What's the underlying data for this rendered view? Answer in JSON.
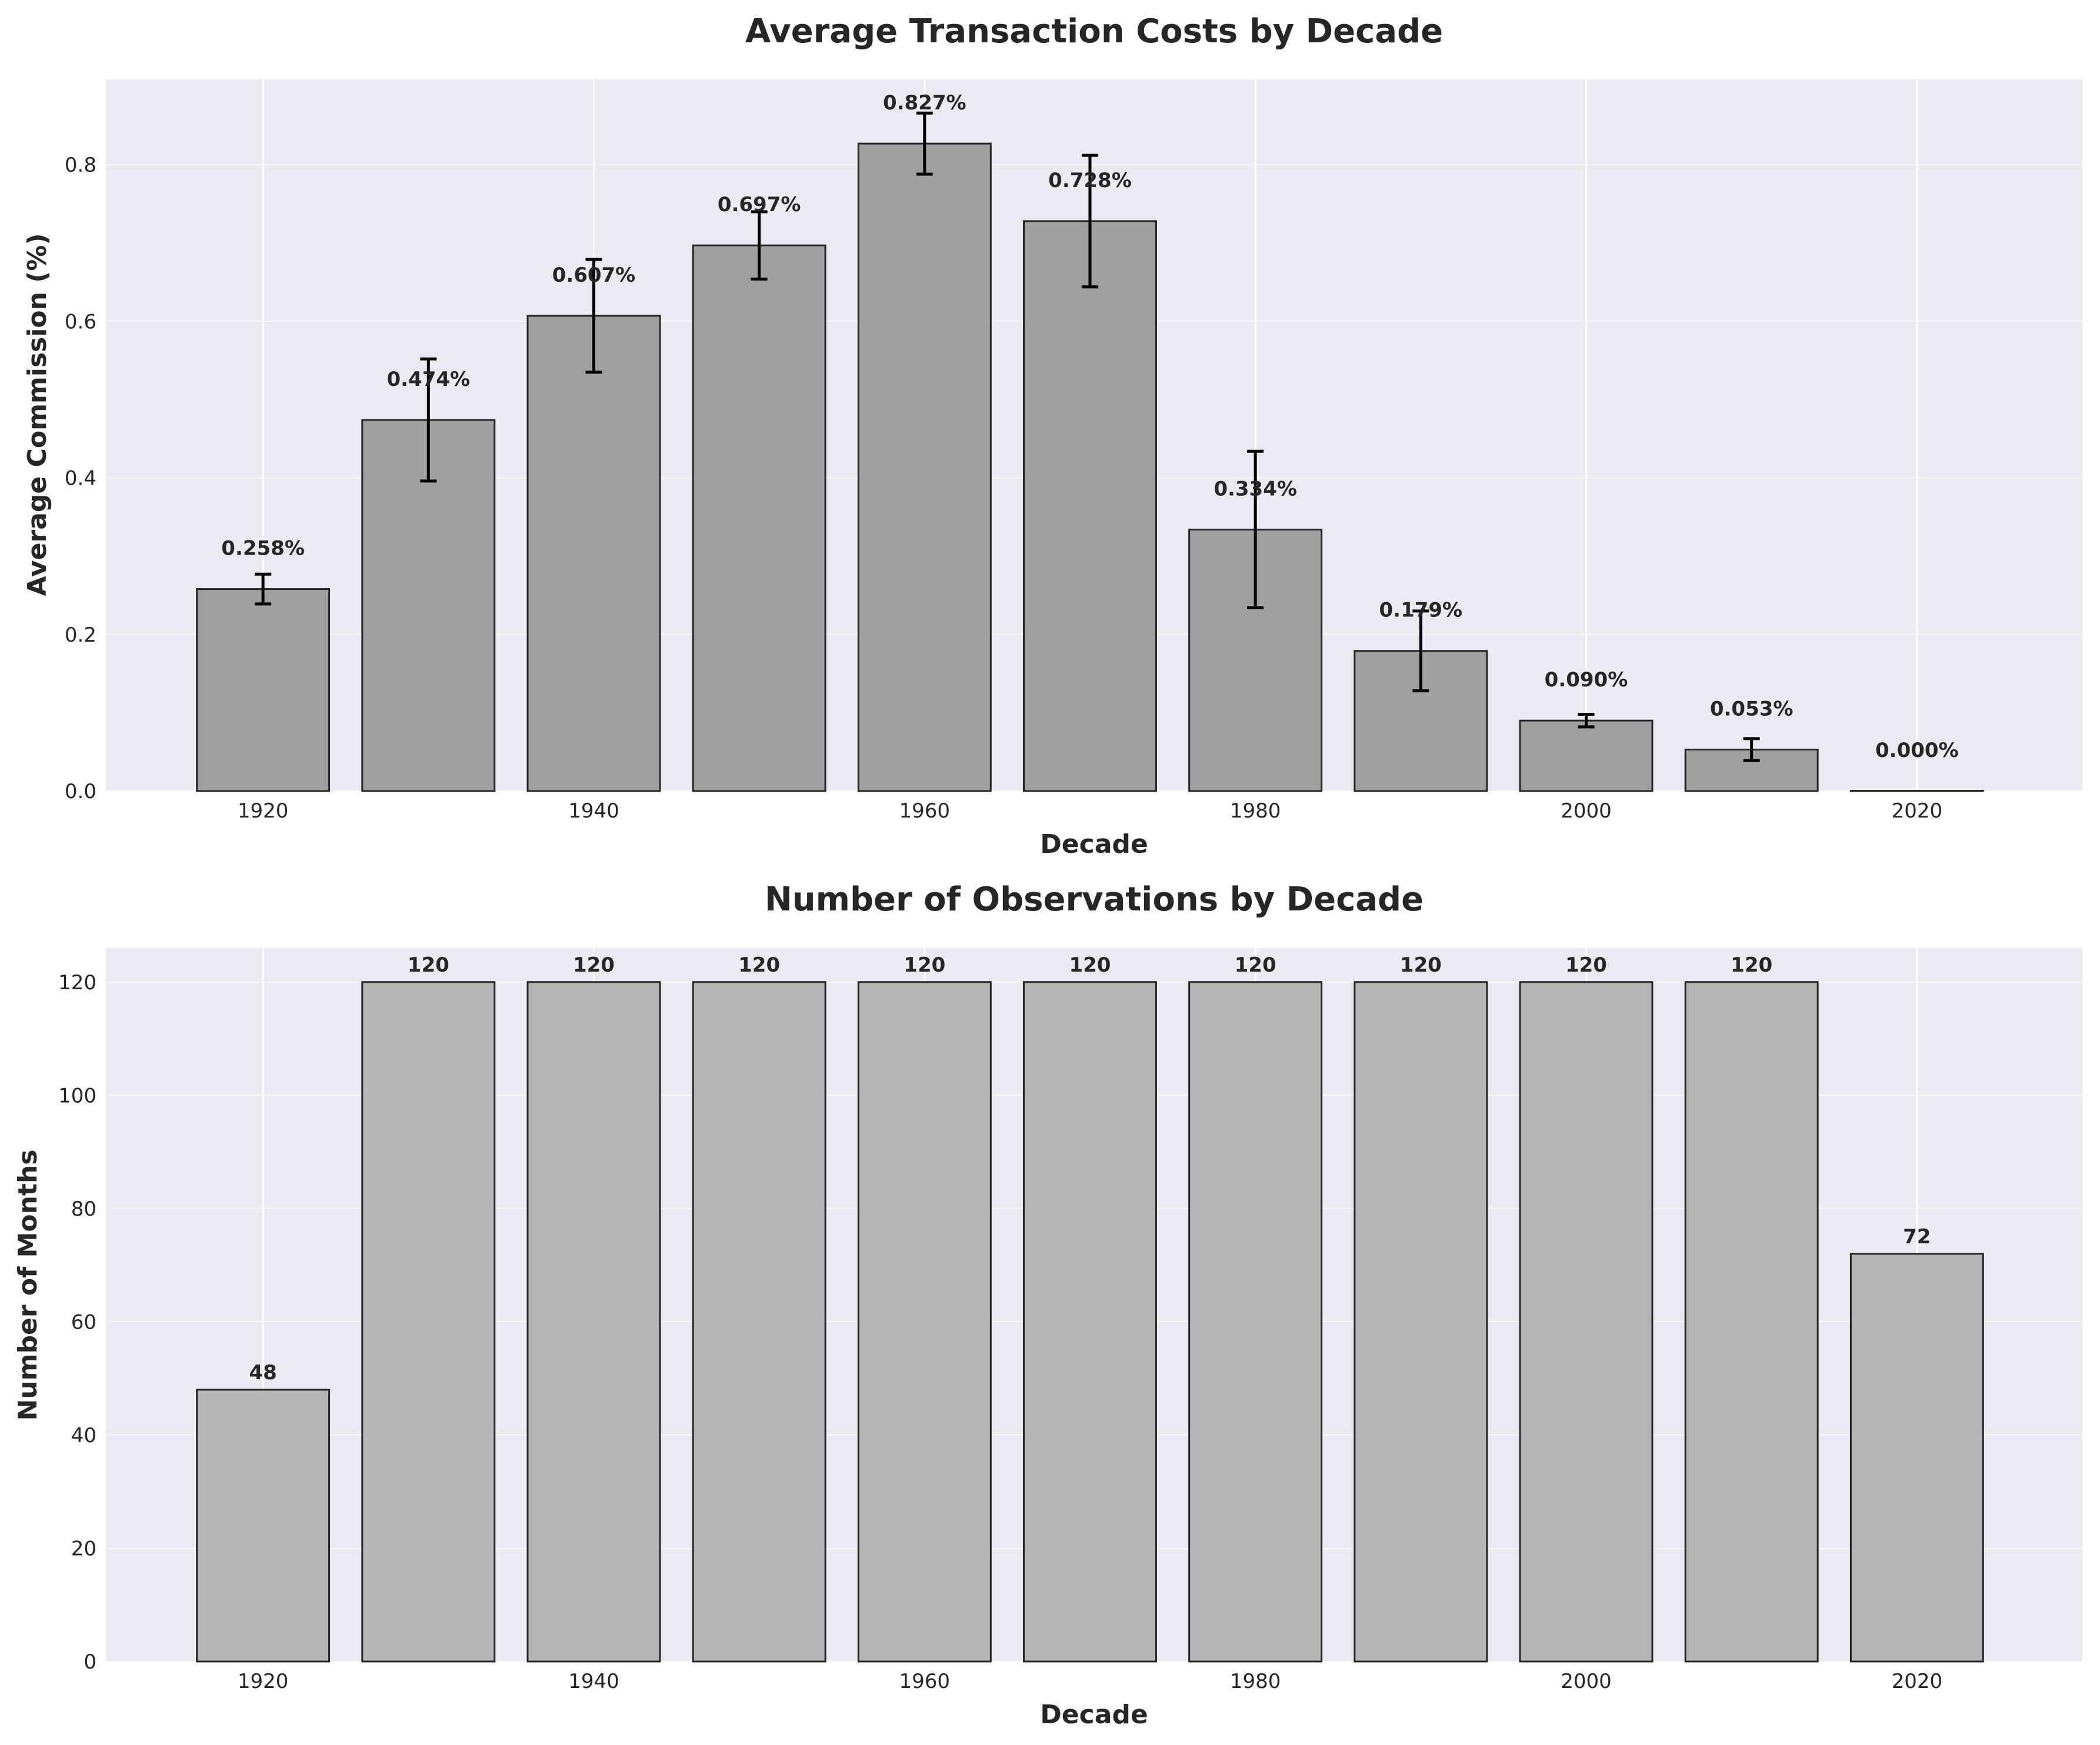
{
  "chart_data": [
    {
      "type": "bar",
      "title": "Average Transaction Costs by Decade",
      "xlabel": "Decade",
      "ylabel": "Average Commission (%)",
      "categories": [
        "1920",
        "1930",
        "1940",
        "1950",
        "1960",
        "1970",
        "1980",
        "1990",
        "2000",
        "2010",
        "2020"
      ],
      "values": [
        0.258,
        0.474,
        0.607,
        0.697,
        0.827,
        0.728,
        0.334,
        0.179,
        0.09,
        0.053,
        0.0
      ],
      "errors": [
        0.019,
        0.078,
        0.072,
        0.043,
        0.039,
        0.084,
        0.1,
        0.051,
        0.008,
        0.014,
        0.0
      ],
      "data_labels": [
        "0.258%",
        "0.474%",
        "0.607%",
        "0.697%",
        "0.827%",
        "0.728%",
        "0.334%",
        "0.179%",
        "0.090%",
        "0.053%",
        "0.000%"
      ],
      "xticks": [
        "1920",
        "1940",
        "1960",
        "1980",
        "2000",
        "2020"
      ],
      "yticks": [
        "0.0",
        "0.2",
        "0.4",
        "0.6",
        "0.8"
      ],
      "ylim": [
        0,
        0.909
      ],
      "grid": true,
      "bar_color": "#a0a0a2"
    },
    {
      "type": "bar",
      "title": "Number of Observations by Decade",
      "xlabel": "Decade",
      "ylabel": "Number of Months",
      "categories": [
        "1920",
        "1930",
        "1940",
        "1950",
        "1960",
        "1970",
        "1980",
        "1990",
        "2000",
        "2010",
        "2020"
      ],
      "values": [
        48,
        120,
        120,
        120,
        120,
        120,
        120,
        120,
        120,
        120,
        72
      ],
      "data_labels": [
        "48",
        "120",
        "120",
        "120",
        "120",
        "120",
        "120",
        "120",
        "120",
        "120",
        "72"
      ],
      "xticks": [
        "1920",
        "1940",
        "1960",
        "1980",
        "2000",
        "2020"
      ],
      "yticks": [
        "0",
        "20",
        "40",
        "60",
        "80",
        "100",
        "120"
      ],
      "ylim": [
        0,
        126
      ],
      "grid": true,
      "bar_color": "#b6b6b8"
    }
  ]
}
